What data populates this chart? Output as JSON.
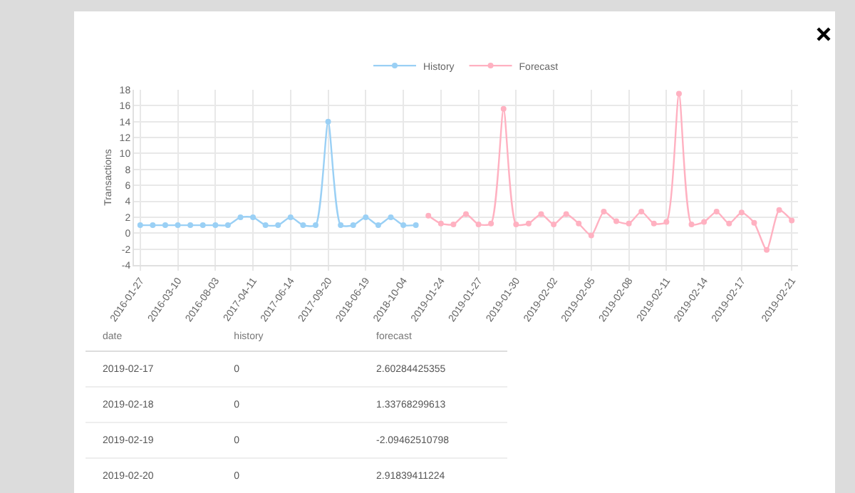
{
  "chart_data": {
    "type": "line",
    "ylabel": "Transactions",
    "categories": [
      "2016-01-27",
      null,
      null,
      "2016-03-10",
      null,
      null,
      "2016-08-03",
      null,
      null,
      "2017-04-11",
      null,
      null,
      "2017-06-14",
      null,
      null,
      "2017-09-20",
      null,
      null,
      "2018-06-19",
      null,
      null,
      "2018-10-04",
      null,
      null,
      "2019-01-24",
      null,
      null,
      "2019-01-27",
      null,
      null,
      "2019-01-30",
      null,
      null,
      "2019-02-02",
      null,
      null,
      "2019-02-05",
      null,
      null,
      "2019-02-08",
      null,
      null,
      "2019-02-11",
      null,
      null,
      "2019-02-14",
      null,
      null,
      "2019-02-17",
      null,
      null,
      null,
      "2019-02-21"
    ],
    "series": [
      {
        "name": "History",
        "color": "#9ad0f5",
        "values": [
          1,
          1,
          1,
          1,
          1,
          1,
          1,
          1,
          2,
          2,
          1,
          1,
          2,
          1,
          1,
          14,
          1,
          1,
          2,
          1,
          2,
          1,
          1,
          null,
          null,
          null,
          null,
          null,
          null,
          null,
          null,
          null,
          null,
          null,
          null,
          null,
          null,
          null,
          null,
          null,
          null,
          null,
          null,
          null,
          null,
          null,
          null,
          null,
          null,
          null,
          null,
          null,
          null
        ]
      },
      {
        "name": "Forecast",
        "color": "#ffb1c1",
        "values": [
          null,
          null,
          null,
          null,
          null,
          null,
          null,
          null,
          null,
          null,
          null,
          null,
          null,
          null,
          null,
          null,
          null,
          null,
          null,
          null,
          null,
          null,
          null,
          2.2,
          1.2,
          1.1,
          2.4,
          1.1,
          1.2,
          15.6,
          1.1,
          1.2,
          2.4,
          1.1,
          2.4,
          1.2,
          -0.3,
          2.7,
          1.5,
          1.2,
          2.7,
          1.2,
          1.4,
          17.5,
          1.1,
          1.4,
          2.7,
          1.2,
          2.6,
          1.3,
          -2.1,
          2.9,
          1.6
        ]
      }
    ],
    "ylim": [
      -4,
      18
    ],
    "yticks": [
      -4,
      -2,
      0,
      2,
      4,
      6,
      8,
      10,
      12,
      14,
      16,
      18
    ],
    "grid": true,
    "legend": "top",
    "marker": "circle",
    "line_style": "solid",
    "annotations": [
      "date",
      "history",
      "forecast",
      "2019-02-17",
      "0",
      "2.60284425355",
      "2019-02-18",
      "0",
      "1.33768299613",
      "2019-02-19",
      "0",
      "-2.09462510798",
      "2019-02-20",
      "0",
      "2.91839411224"
    ]
  }
}
